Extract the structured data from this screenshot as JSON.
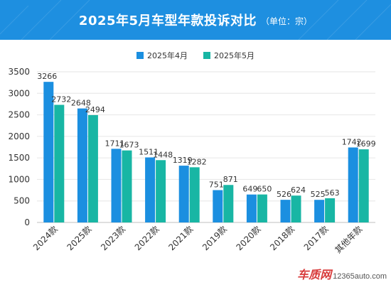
{
  "header": {
    "title": "2025年5月车型年款投诉对比",
    "unit": "（单位：宗）",
    "bg_color": "#1e8fe0"
  },
  "legend": {
    "items": [
      {
        "label": "2025年4月",
        "color": "#1b8fe0"
      },
      {
        "label": "2025年5月",
        "color": "#18b6a4"
      }
    ]
  },
  "watermark": {
    "logo": "车质网",
    "url": "12365auto.com"
  },
  "chart_data": {
    "type": "bar",
    "categories": [
      "2024款",
      "2025款",
      "2023款",
      "2022款",
      "2021款",
      "2019款",
      "2020款",
      "2018款",
      "2017款",
      "其他年款"
    ],
    "series": [
      {
        "name": "2025年4月",
        "values": [
          3266,
          2648,
          1711,
          1511,
          1319,
          751,
          649,
          526,
          525,
          1742
        ],
        "color": "#1b8fe0"
      },
      {
        "name": "2025年5月",
        "values": [
          2732,
          2494,
          1673,
          1448,
          1282,
          871,
          650,
          624,
          563,
          1699
        ],
        "color": "#18b6a4"
      }
    ],
    "ylim": [
      0,
      3500
    ],
    "yticks": [
      0,
      500,
      1000,
      1500,
      2000,
      2500,
      3000,
      3500
    ],
    "grid": true,
    "legend_position": "top"
  }
}
